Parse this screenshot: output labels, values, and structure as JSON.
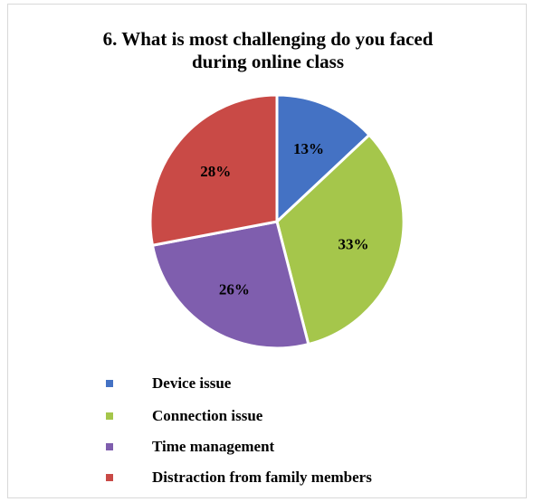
{
  "chart_data": {
    "type": "pie",
    "title_lines": [
      "6. What is most challenging do you faced",
      "during online class"
    ],
    "categories": [
      "Device issue",
      "Connection issue",
      "Time management",
      "Distraction from family members"
    ],
    "values": [
      13,
      33,
      26,
      28
    ],
    "labels": [
      "13%",
      "33%",
      "26%",
      "28%"
    ],
    "colors": [
      "#4472C4",
      "#A5C64B",
      "#7F5EAE",
      "#C94A46"
    ],
    "legend_position": "bottom"
  }
}
